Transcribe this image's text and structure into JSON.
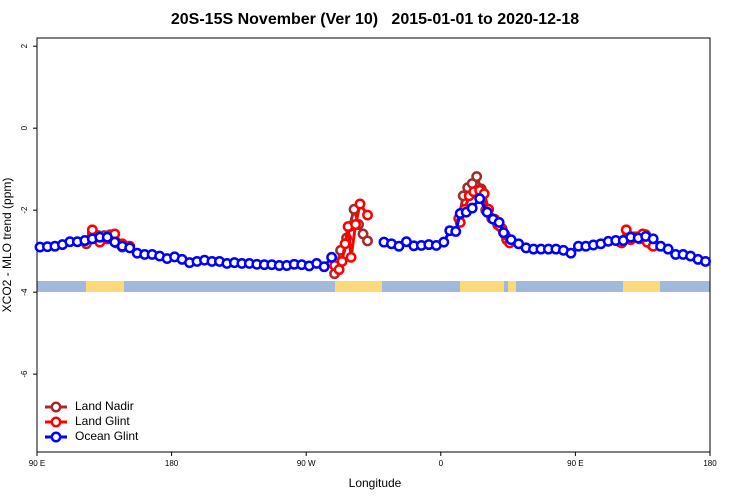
{
  "chart_data": {
    "type": "line",
    "title": "20S-15S November (Ver 10)   2015-01-01 to 2020-12-18",
    "x_label": "Longitude",
    "y_label": "XCO2 - MLO trend (ppm)",
    "xlim": [
      90,
      540
    ],
    "xticks": [
      {
        "value": 90,
        "label": "90 E"
      },
      180,
      {
        "value": 270,
        "label": "90 W"
      },
      {
        "value": 360,
        "label": "0"
      },
      {
        "value": 450,
        "label": "90 E"
      },
      {
        "value": 540,
        "label": "180"
      }
    ],
    "ylim": [
      -7.9,
      2.2
    ],
    "yticks": [
      2,
      0,
      -2,
      -4,
      -6
    ],
    "legend": "bottom-left",
    "series": [
      {
        "name": "Land Nadir",
        "color": "#a52a2a",
        "x": [
          123,
          127,
          131,
          135,
          139,
          143,
          147,
          200,
          289,
          293,
          297,
          299,
          302,
          305,
          308,
          311,
          340,
          372,
          375,
          378,
          381,
          384,
          387,
          390,
          394,
          398,
          401,
          404,
          440,
          481,
          485,
          489,
          493,
          497,
          501
        ],
        "values": [
          -2.82,
          -2.55,
          -2.62,
          -2.62,
          -2.6,
          -2.8,
          -2.9,
          null,
          -3.55,
          -2.98,
          -2.68,
          -2.4,
          -1.98,
          -2.35,
          -2.58,
          -2.75,
          null,
          -2.2,
          -1.65,
          -1.45,
          -1.35,
          -1.18,
          -1.48,
          -2.0,
          -2.2,
          -2.35,
          -2.45,
          -2.72,
          null,
          -2.8,
          -2.6,
          -2.65,
          -2.7,
          -2.6,
          -2.85
        ]
      },
      {
        "name": "Land Glint",
        "color": "#ff0000",
        "x": [
          122,
          127,
          132,
          137,
          142,
          147,
          152,
          200,
          289,
          292,
          294,
          296,
          298,
          300,
          303,
          306,
          311,
          340,
          373,
          376,
          379,
          382,
          386,
          389,
          392,
          396,
          399,
          403,
          406,
          440,
          480,
          484,
          487,
          491,
          495,
          498,
          502
        ],
        "values": [
          -2.75,
          -2.48,
          -2.78,
          -2.7,
          -2.58,
          -2.82,
          -2.88,
          null,
          -3.35,
          -3.45,
          -3.25,
          -2.82,
          -2.4,
          -3.15,
          -2.35,
          -1.85,
          -2.12,
          null,
          -2.3,
          -1.98,
          -1.65,
          -1.55,
          -1.52,
          -1.6,
          -1.98,
          -2.22,
          -2.38,
          -2.6,
          -2.8,
          null,
          -2.78,
          -2.48,
          -2.72,
          -2.65,
          -2.58,
          -2.78,
          -2.88
        ]
      },
      {
        "name": "Ocean Glint",
        "color": "#0000ff",
        "x": [
          92,
          97,
          102,
          107,
          112,
          117,
          122,
          127,
          132,
          137,
          142,
          147,
          152,
          157,
          162,
          167,
          172,
          177,
          182,
          187,
          192,
          197,
          202,
          207,
          212,
          217,
          222,
          227,
          232,
          237,
          242,
          247,
          252,
          257,
          262,
          267,
          272,
          277,
          282,
          287,
          305,
          322,
          327,
          332,
          337,
          342,
          347,
          352,
          357,
          362,
          366,
          370,
          373,
          377,
          381,
          386,
          391,
          395,
          399,
          402,
          407,
          412,
          417,
          422,
          427,
          432,
          437,
          442,
          447,
          452,
          457,
          462,
          467,
          472,
          477,
          482,
          487,
          492,
          497,
          502,
          507,
          512,
          517,
          522,
          527,
          532,
          537
        ],
        "values": [
          -2.9,
          -2.89,
          -2.88,
          -2.84,
          -2.77,
          -2.77,
          -2.74,
          -2.7,
          -2.66,
          -2.66,
          -2.78,
          -2.88,
          -2.92,
          -3.05,
          -3.08,
          -3.08,
          -3.12,
          -3.18,
          -3.14,
          -3.2,
          -3.28,
          -3.25,
          -3.22,
          -3.25,
          -3.25,
          -3.3,
          -3.28,
          -3.3,
          -3.3,
          -3.32,
          -3.33,
          -3.33,
          -3.35,
          -3.35,
          -3.32,
          -3.33,
          -3.36,
          -3.3,
          -3.38,
          -3.15,
          null,
          -2.78,
          -2.82,
          -2.88,
          -2.77,
          -2.87,
          -2.86,
          -2.84,
          -2.86,
          -2.78,
          -2.5,
          -2.52,
          -2.08,
          -2.05,
          -1.95,
          -1.72,
          -2.05,
          -2.22,
          -2.3,
          -2.55,
          -2.72,
          -2.82,
          -2.92,
          -2.95,
          -2.95,
          -2.95,
          -2.95,
          -2.98,
          -3.05,
          -2.88,
          -2.88,
          -2.85,
          -2.82,
          -2.76,
          -2.74,
          -2.74,
          -2.66,
          -2.68,
          -2.64,
          -2.7,
          -2.88,
          -2.95,
          -3.08,
          -3.08,
          -3.12,
          -3.2,
          -3.25
        ]
      }
    ]
  }
}
